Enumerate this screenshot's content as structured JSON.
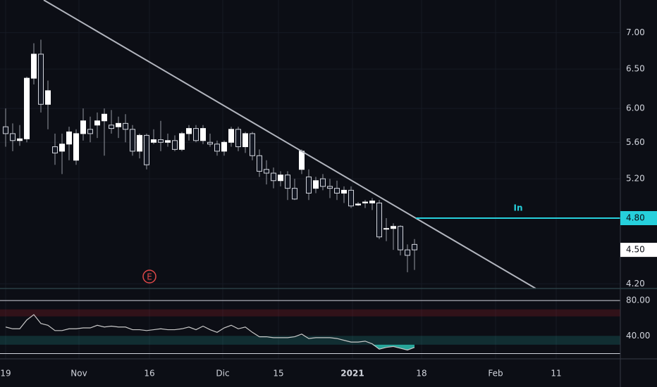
{
  "chart_data": [
    {
      "type": "candlestick",
      "log_scale": true,
      "grid": true,
      "up_color": "#ffffff",
      "down_color": "#131722",
      "wick_color": "#9598a1",
      "x": [
        0.8,
        1.8,
        2.8,
        3.8,
        4.8,
        5.8,
        6.8,
        7.8,
        8.8,
        9.8,
        10.8,
        11.8,
        12.8,
        13.8,
        14.8,
        15.8,
        16.8,
        17.8,
        18.8,
        19.8,
        20.8,
        21.8,
        22.8,
        23.8,
        24.8,
        25.8,
        26.8,
        27.8,
        28.8,
        29.8,
        30.8,
        31.8,
        32.8,
        33.8,
        34.8,
        35.8,
        36.8,
        37.8,
        38.8,
        39.8,
        40.8,
        41.8,
        42.8,
        43.8,
        44.8,
        45.8,
        46.8,
        47.8,
        48.8,
        49.8,
        50.8,
        51.8,
        52.8,
        53.8,
        54.8,
        55.8,
        56.8,
        57.8,
        58.8
      ],
      "open": [
        5.78,
        5.7,
        5.62,
        5.64,
        6.38,
        6.7,
        6.05,
        5.55,
        5.5,
        5.58,
        5.4,
        5.7,
        5.75,
        5.8,
        5.85,
        5.8,
        5.78,
        5.82,
        5.75,
        5.5,
        5.68,
        5.6,
        5.63,
        5.6,
        5.62,
        5.52,
        5.7,
        5.76,
        5.62,
        5.6,
        5.58,
        5.5,
        5.6,
        5.75,
        5.55,
        5.7,
        5.45,
        5.3,
        5.26,
        5.18,
        5.24,
        5.1,
        5.3,
        5.22,
        5.1,
        5.2,
        5.12,
        5.1,
        5.05,
        5.08,
        4.93,
        4.95,
        4.95,
        4.95,
        4.7,
        4.7,
        4.72,
        4.5,
        4.55
      ],
      "high": [
        6.0,
        5.82,
        5.8,
        6.4,
        6.85,
        6.9,
        6.35,
        5.7,
        5.7,
        5.78,
        5.75,
        6.0,
        5.9,
        5.95,
        6.0,
        5.98,
        5.9,
        5.93,
        5.8,
        5.7,
        5.7,
        5.75,
        5.85,
        5.7,
        5.68,
        5.72,
        5.8,
        5.8,
        5.8,
        5.7,
        5.62,
        5.62,
        5.78,
        5.78,
        5.72,
        5.72,
        5.52,
        5.4,
        5.32,
        5.28,
        5.28,
        5.2,
        5.52,
        5.3,
        5.22,
        5.25,
        5.2,
        5.18,
        5.12,
        5.12,
        4.96,
        4.98,
        5.0,
        4.98,
        4.8,
        4.75,
        4.73,
        4.55,
        4.6
      ],
      "low": [
        5.55,
        5.5,
        5.56,
        5.6,
        6.3,
        5.95,
        5.75,
        5.35,
        5.25,
        5.4,
        5.35,
        5.62,
        5.6,
        5.65,
        5.45,
        5.7,
        5.65,
        5.6,
        5.45,
        5.42,
        5.3,
        5.58,
        5.5,
        5.55,
        5.5,
        5.5,
        5.62,
        5.6,
        5.58,
        5.55,
        5.45,
        5.45,
        5.55,
        5.5,
        5.48,
        5.4,
        5.22,
        5.14,
        5.1,
        5.12,
        4.98,
        4.98,
        5.25,
        4.98,
        5.05,
        5.08,
        5.0,
        4.98,
        4.95,
        4.9,
        4.92,
        4.9,
        4.88,
        4.6,
        4.58,
        4.5,
        4.45,
        4.3,
        4.32
      ],
      "close": [
        5.7,
        5.62,
        5.64,
        6.38,
        6.7,
        6.05,
        6.22,
        5.48,
        5.58,
        5.72,
        5.7,
        5.85,
        5.7,
        5.85,
        5.93,
        5.76,
        5.82,
        5.75,
        5.5,
        5.68,
        5.35,
        5.63,
        5.6,
        5.62,
        5.52,
        5.7,
        5.76,
        5.62,
        5.76,
        5.58,
        5.5,
        5.6,
        5.75,
        5.55,
        5.7,
        5.45,
        5.28,
        5.26,
        5.18,
        5.24,
        5.1,
        4.99,
        5.5,
        5.05,
        5.18,
        5.12,
        5.1,
        5.05,
        5.08,
        4.92,
        4.94,
        4.96,
        4.97,
        4.62,
        4.7,
        4.72,
        4.5,
        4.45,
        4.5
      ],
      "xlim": [
        0,
        88
      ],
      "xticks": [
        {
          "value": 0.8,
          "label": "19"
        },
        {
          "value": 11.2,
          "label": "Nov"
        },
        {
          "value": 21.2,
          "label": "16"
        },
        {
          "value": 31.6,
          "label": "Dic"
        },
        {
          "value": 39.5,
          "label": "15"
        },
        {
          "value": 50,
          "label": "2021"
        },
        {
          "value": 59.8,
          "label": "18"
        },
        {
          "value": 70.3,
          "label": "Feb"
        },
        {
          "value": 78.9,
          "label": "11"
        }
      ],
      "ylim": [
        4.16,
        7.48
      ],
      "yticks": [
        {
          "value": 4.2,
          "label": "4.20"
        },
        {
          "value": 5.2,
          "label": "5.20"
        },
        {
          "value": 5.6,
          "label": "5.60"
        },
        {
          "value": 6,
          "label": "6.00"
        },
        {
          "value": 6.5,
          "label": "6.50"
        },
        {
          "value": 7,
          "label": "7.00"
        }
      ],
      "horizontal_line": {
        "name": "In",
        "value": 4.8,
        "label": "4.80",
        "x": [
          59,
          88
        ],
        "color": "#26d0dc"
      },
      "last_price": {
        "value": 4.5,
        "label": "4.50"
      },
      "trendline": {
        "x": [
          6.2,
          76.0
        ],
        "y": [
          7.48,
          4.16
        ],
        "color": "#b2b5be"
      },
      "event": {
        "label": "E",
        "x": 21.2,
        "color": "#e04848"
      }
    },
    {
      "type": "line",
      "color": "#c8c8c8",
      "x": [
        0.8,
        1.8,
        2.8,
        3.8,
        4.8,
        5.8,
        6.8,
        7.8,
        8.8,
        9.8,
        10.8,
        11.8,
        12.8,
        13.8,
        14.8,
        15.8,
        16.8,
        17.8,
        18.8,
        19.8,
        20.8,
        21.8,
        22.8,
        23.8,
        24.8,
        25.8,
        26.8,
        27.8,
        28.8,
        29.8,
        30.8,
        31.8,
        32.8,
        33.8,
        34.8,
        35.8,
        36.8,
        37.8,
        38.8,
        39.8,
        40.8,
        41.8,
        42.8,
        43.8,
        44.8,
        45.8,
        46.8,
        47.8,
        48.8,
        49.8,
        50.8,
        51.8,
        52.8,
        53.8,
        54.8,
        55.8,
        56.8,
        57.8,
        58.8
      ],
      "values": [
        50,
        48,
        48,
        58,
        64,
        54,
        52,
        46,
        46,
        48,
        48,
        49,
        49,
        52,
        50,
        51,
        50,
        50,
        47,
        47,
        46,
        47,
        48,
        47,
        47,
        48,
        50,
        47,
        51,
        47,
        44,
        49,
        52,
        48,
        50,
        44,
        39,
        39,
        38,
        38,
        38,
        39,
        42,
        37,
        38,
        38,
        38,
        37,
        35,
        33,
        33,
        34,
        31,
        25,
        27,
        28,
        26,
        24,
        27
      ],
      "ylim": [
        14,
        92
      ],
      "yticks": [
        {
          "value": 80,
          "label": "80.00"
        },
        {
          "value": 40,
          "label": "40.00"
        }
      ],
      "hlines": [
        80,
        20
      ],
      "fill_below": 30,
      "fill_color": "#26a69a",
      "bands": [
        {
          "range": [
            62,
            70
          ],
          "color": "rgba(160,30,40,0.25)"
        },
        {
          "range": [
            30,
            40
          ],
          "color": "rgba(38,166,154,0.22)"
        }
      ]
    }
  ]
}
